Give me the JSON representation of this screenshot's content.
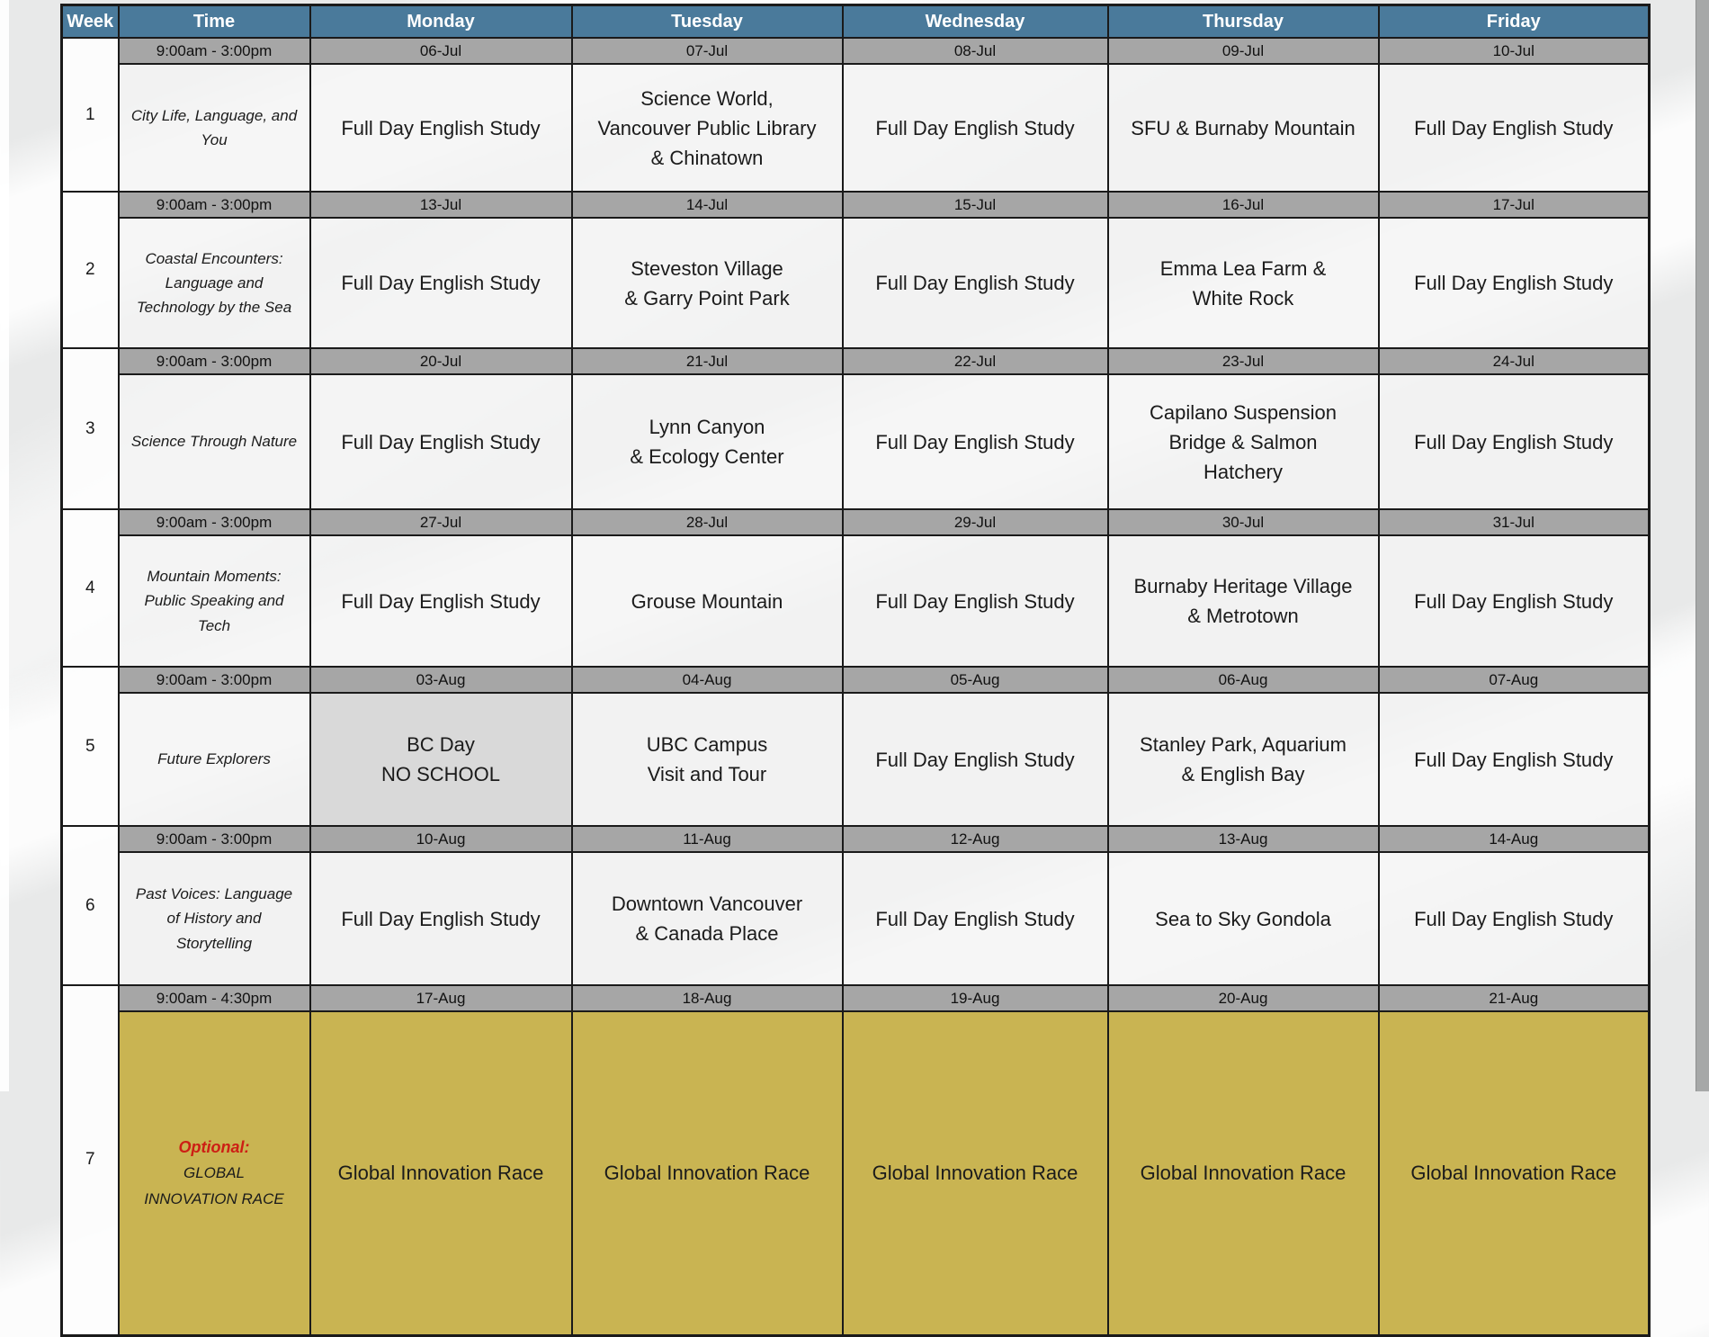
{
  "table": {
    "headers": [
      "Week",
      "Time",
      "Monday",
      "Tuesday",
      "Wednesday",
      "Thursday",
      "Friday"
    ],
    "weeks": [
      {
        "week": "1",
        "time": "9:00am - 3:00pm",
        "theme": "City Life, Language, and You",
        "dates": [
          "06-Jul",
          "07-Jul",
          "08-Jul",
          "09-Jul",
          "10-Jul"
        ],
        "activities": [
          {
            "text": "Full Day English Study",
            "variant": "normal"
          },
          {
            "text": "Science World,\nVancouver Public Library\n& Chinatown",
            "variant": "normal"
          },
          {
            "text": "Full Day English Study",
            "variant": "normal"
          },
          {
            "text": "SFU & Burnaby Mountain",
            "variant": "normal"
          },
          {
            "text": "Full Day English Study",
            "variant": "normal"
          }
        ]
      },
      {
        "week": "2",
        "time": "9:00am - 3:00pm",
        "theme": "Coastal Encounters: Language and Technology by the Sea",
        "dates": [
          "13-Jul",
          "14-Jul",
          "15-Jul",
          "16-Jul",
          "17-Jul"
        ],
        "activities": [
          {
            "text": "Full Day English Study",
            "variant": "normal"
          },
          {
            "text": "Steveston Village\n& Garry Point Park",
            "variant": "normal"
          },
          {
            "text": "Full Day English Study",
            "variant": "normal"
          },
          {
            "text": "Emma Lea Farm &\nWhite Rock",
            "variant": "normal"
          },
          {
            "text": "Full Day English Study",
            "variant": "normal"
          }
        ]
      },
      {
        "week": "3",
        "time": "9:00am - 3:00pm",
        "theme": "Science Through Nature",
        "dates": [
          "20-Jul",
          "21-Jul",
          "22-Jul",
          "23-Jul",
          "24-Jul"
        ],
        "activities": [
          {
            "text": "Full Day English Study",
            "variant": "normal"
          },
          {
            "text": "Lynn Canyon\n& Ecology Center",
            "variant": "normal"
          },
          {
            "text": "Full Day English Study",
            "variant": "normal"
          },
          {
            "text": "Capilano Suspension\nBridge & Salmon\nHatchery",
            "variant": "normal"
          },
          {
            "text": "Full Day English Study",
            "variant": "normal"
          }
        ]
      },
      {
        "week": "4",
        "time": "9:00am - 3:00pm",
        "theme": "Mountain Moments: Public Speaking and Tech",
        "dates": [
          "27-Jul",
          "28-Jul",
          "29-Jul",
          "30-Jul",
          "31-Jul"
        ],
        "activities": [
          {
            "text": "Full Day English Study",
            "variant": "normal"
          },
          {
            "text": "Grouse Mountain",
            "variant": "normal"
          },
          {
            "text": "Full Day English Study",
            "variant": "normal"
          },
          {
            "text": "Burnaby Heritage Village\n& Metrotown",
            "variant": "normal"
          },
          {
            "text": "Full Day English Study",
            "variant": "normal"
          }
        ]
      },
      {
        "week": "5",
        "time": "9:00am - 3:00pm",
        "theme": "Future Explorers",
        "dates": [
          "03-Aug",
          "04-Aug",
          "05-Aug",
          "06-Aug",
          "07-Aug"
        ],
        "activities": [
          {
            "text": "BC Day\nNO SCHOOL",
            "variant": "holiday"
          },
          {
            "text": "UBC Campus\nVisit and Tour",
            "variant": "normal"
          },
          {
            "text": "Full Day English Study",
            "variant": "normal"
          },
          {
            "text": "Stanley Park, Aquarium\n& English Bay",
            "variant": "normal"
          },
          {
            "text": "Full Day English Study",
            "variant": "normal"
          }
        ]
      },
      {
        "week": "6",
        "time": "9:00am - 3:00pm",
        "theme": "Past Voices: Language of History and Storytelling",
        "dates": [
          "10-Aug",
          "11-Aug",
          "12-Aug",
          "13-Aug",
          "14-Aug"
        ],
        "activities": [
          {
            "text": "Full Day English Study",
            "variant": "normal"
          },
          {
            "text": "Downtown Vancouver\n& Canada Place",
            "variant": "normal"
          },
          {
            "text": "Full Day English Study",
            "variant": "normal"
          },
          {
            "text": "Sea to Sky Gondola",
            "variant": "normal"
          },
          {
            "text": "Full Day English Study",
            "variant": "normal"
          }
        ]
      },
      {
        "week": "7",
        "time": "9:00am - 4:30pm",
        "theme_optional": "Optional:",
        "theme": "GLOBAL\nINNOVATION RACE",
        "theme_variant": "race",
        "dates": [
          "17-Aug",
          "18-Aug",
          "19-Aug",
          "20-Aug",
          "21-Aug"
        ],
        "activities": [
          {
            "text": "Global Innovation Race",
            "variant": "race"
          },
          {
            "text": "Global Innovation Race",
            "variant": "race"
          },
          {
            "text": "Global Innovation Race",
            "variant": "race"
          },
          {
            "text": "Global Innovation Race",
            "variant": "race"
          },
          {
            "text": "Global Innovation Race",
            "variant": "race"
          }
        ]
      }
    ]
  },
  "colors": {
    "header_blue": "#4a7a9b",
    "date_row_gray": "#a6a6a6",
    "holiday_gray": "#d9d9d9",
    "race_gold": "#c9b452",
    "optional_red": "#cd1e14",
    "grid_line": "#1a1a1a"
  }
}
